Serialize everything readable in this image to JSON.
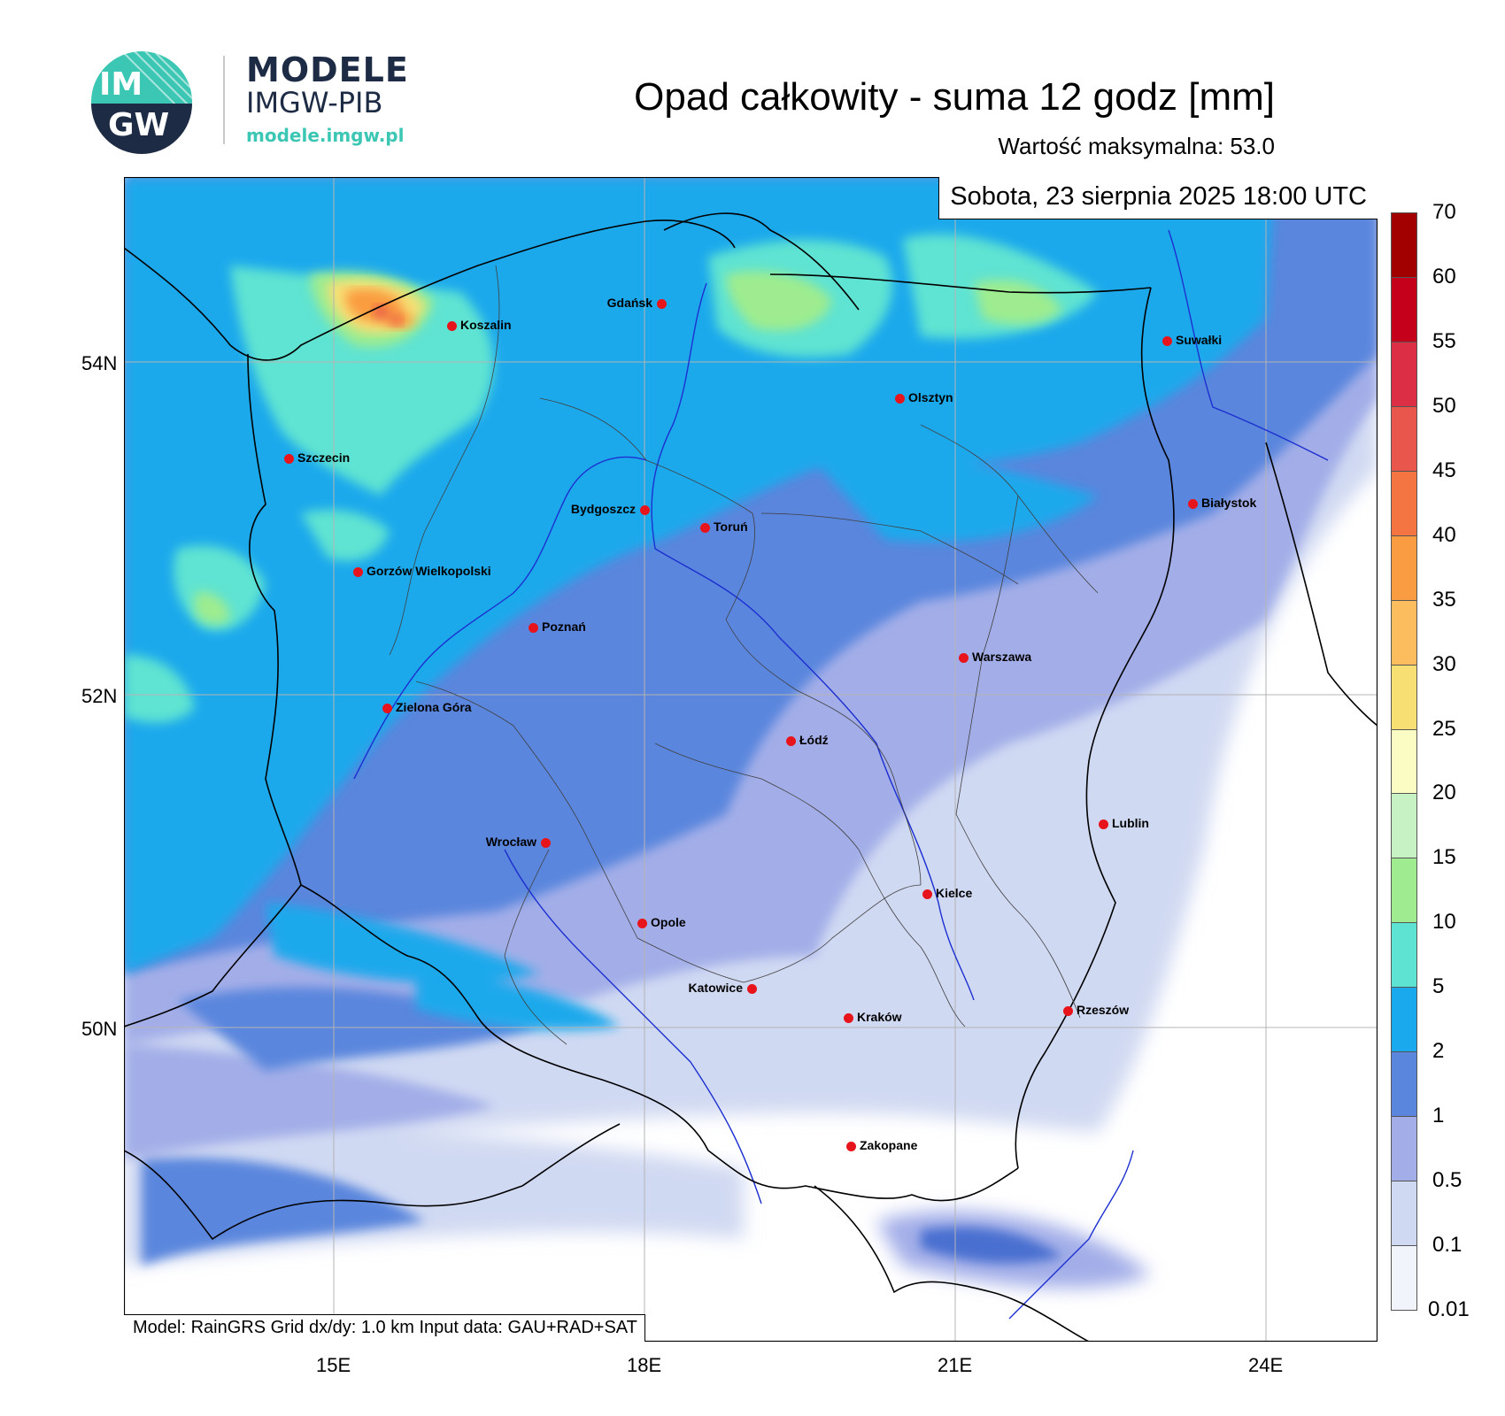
{
  "logo": {
    "badge_top": "IM",
    "badge_bottom": "GW",
    "title": "MODELE",
    "subtitle": "IMGW-PIB",
    "url": "modele.imgw.pl"
  },
  "header": {
    "title": "Opad całkowity - suma 12 godz [mm]",
    "max_value_text": "Wartość maksymalna:  53.0"
  },
  "map": {
    "date_label": "Sobota, 23 sierpnia 2025 18:00 UTC",
    "model_info": "Model: RainGRS   Grid dx/dy: 1.0 km   Input data: GAU+RAD+SAT",
    "lat_labels": [
      "54N",
      "52N",
      "50N"
    ],
    "lon_labels": [
      "15E",
      "18E",
      "21E",
      "24E"
    ],
    "cities": [
      {
        "name": "Koszalin"
      },
      {
        "name": "Gdańsk"
      },
      {
        "name": "Suwałki"
      },
      {
        "name": "Olsztyn"
      },
      {
        "name": "Szczecin"
      },
      {
        "name": "Bydgoszcz"
      },
      {
        "name": "Toruń"
      },
      {
        "name": "Białystok"
      },
      {
        "name": "Gorzów Wielkopolski"
      },
      {
        "name": "Poznań"
      },
      {
        "name": "Warszawa"
      },
      {
        "name": "Zielona Góra"
      },
      {
        "name": "Łódź"
      },
      {
        "name": "Lublin"
      },
      {
        "name": "Wrocław"
      },
      {
        "name": "Kielce"
      },
      {
        "name": "Opole"
      },
      {
        "name": "Katowice"
      },
      {
        "name": "Kraków"
      },
      {
        "name": "Rzeszów"
      },
      {
        "name": "Zakopane"
      }
    ]
  },
  "legend": {
    "levels": [
      "0.01",
      "0.1",
      "0.5",
      "1",
      "2",
      "5",
      "10",
      "15",
      "20",
      "25",
      "30",
      "35",
      "40",
      "45",
      "50",
      "55",
      "60",
      "70"
    ],
    "colors": [
      "#f2f4fb",
      "#d0d9f2",
      "#a3aee8",
      "#5a86dd",
      "#1aa9ec",
      "#5ee3d2",
      "#9eec8f",
      "#c7f3c4",
      "#fbfbc4",
      "#f7df74",
      "#fbbd5e",
      "#fa9c41",
      "#f47442",
      "#e9564b",
      "#dc2e44",
      "#c4001a",
      "#a20000",
      "#7a0000"
    ]
  }
}
